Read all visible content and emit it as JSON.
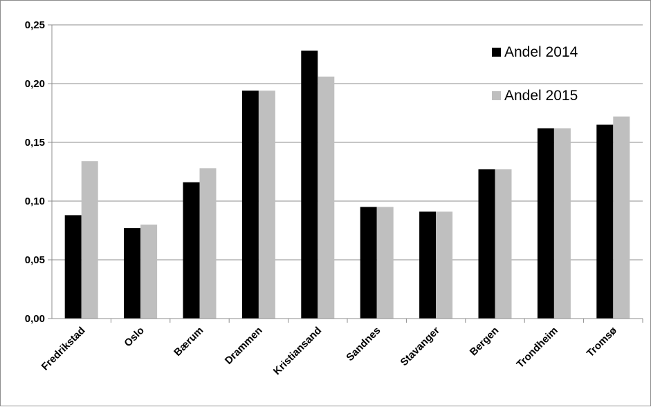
{
  "chart_data": {
    "type": "bar",
    "categories": [
      "Fredrikstad",
      "Oslo",
      "Bærum",
      "Drammen",
      "Kristiansand",
      "Sandnes",
      "Stavanger",
      "Bergen",
      "Trondheim",
      "Tromsø"
    ],
    "series": [
      {
        "name": "Andel 2014",
        "color": "#000000",
        "values": [
          0.088,
          0.077,
          0.116,
          0.194,
          0.228,
          0.095,
          0.091,
          0.127,
          0.162,
          0.165
        ]
      },
      {
        "name": "Andel 2015",
        "color": "#bfbfbf",
        "values": [
          0.134,
          0.08,
          0.128,
          0.194,
          0.206,
          0.095,
          0.091,
          0.127,
          0.162,
          0.172
        ]
      }
    ],
    "yticks": [
      "0,00",
      "0,05",
      "0,10",
      "0,15",
      "0,20",
      "0,25"
    ],
    "ylim": [
      0,
      0.25
    ],
    "grid": true,
    "legend_position": "top-right"
  }
}
